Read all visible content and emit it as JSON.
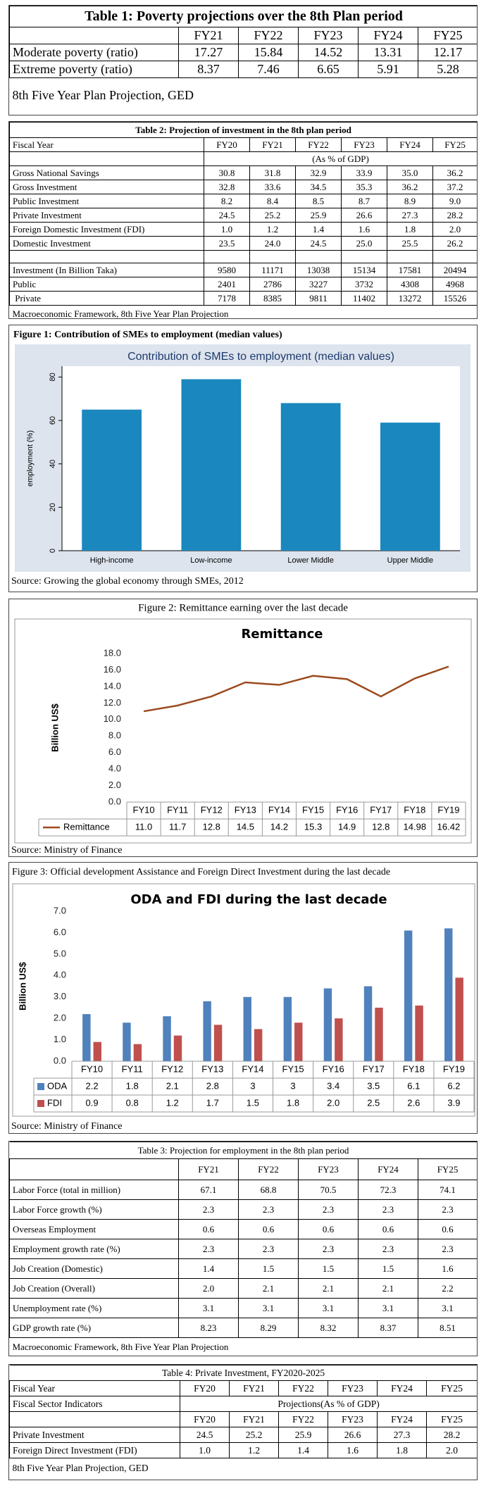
{
  "table1": {
    "title": "Table 1: Poverty projections over the 8th Plan period",
    "columns": [
      "FY21",
      "FY22",
      "FY23",
      "FY24",
      "FY25"
    ],
    "rows": [
      {
        "label": "Moderate poverty (ratio)",
        "values": [
          "17.27",
          "15.84",
          "14.52",
          "13.31",
          "12.17"
        ]
      },
      {
        "label": "Extreme poverty (ratio)",
        "values": [
          "8.37",
          "7.46",
          "6.65",
          "5.91",
          "5.28"
        ]
      }
    ],
    "source": "8th Five Year Plan Projection, GED"
  },
  "table2": {
    "title": "Table 2: Projection of investment in the 8th plan period",
    "header": "Fiscal Year",
    "columns": [
      "FY20",
      "FY21",
      "FY22",
      "FY23",
      "FY24",
      "FY25"
    ],
    "unit": "(As % of GDP)",
    "sections": [
      [
        {
          "label": "Gross National Savings",
          "values": [
            "30.8",
            "31.8",
            "32.9",
            "33.9",
            "35.0",
            "36.2"
          ]
        },
        {
          "label": "Gross Investment",
          "values": [
            "32.8",
            "33.6",
            "34.5",
            "35.3",
            "36.2",
            "37.2"
          ]
        },
        {
          "label": "Public Investment",
          "values": [
            "8.2",
            "8.4",
            "8.5",
            "8.7",
            "8.9",
            "9.0"
          ]
        },
        {
          "label": "Private Investment",
          "values": [
            "24.5",
            "25.2",
            "25.9",
            "26.6",
            "27.3",
            "28.2"
          ]
        },
        {
          "label": "Foreign Domestic Investment (FDI)",
          "values": [
            "1.0",
            "1.2",
            "1.4",
            "1.6",
            "1.8",
            "2.0"
          ]
        },
        {
          "label": "Domestic Investment",
          "values": [
            "23.5",
            "24.0",
            "24.5",
            "25.0",
            "25.5",
            "26.2"
          ]
        }
      ],
      [
        {
          "label": "Investment (In Billion Taka)",
          "values": [
            "9580",
            "11171",
            "13038",
            "15134",
            "17581",
            "20494"
          ]
        },
        {
          "label": "Public",
          "values": [
            "2401",
            "2786",
            "3227",
            "3732",
            "4308",
            "4968"
          ]
        },
        {
          "label": " Private",
          "values": [
            "7178",
            "8385",
            "9811",
            "11402",
            "13272",
            "15526"
          ]
        }
      ]
    ],
    "source": "Macroeconomic Framework, 8th Five Year Plan Projection"
  },
  "chart_data": [
    {
      "type": "bar",
      "caption": "Figure 1: Contribution of SMEs to employment (median values)",
      "title": "Contribution of SMEs to employment (median values)",
      "y_label": "employment (%)",
      "categories": [
        "High-income",
        "Low-income",
        "Lower Middle",
        "Upper Middle"
      ],
      "values": [
        65,
        79,
        68,
        59
      ],
      "color": "#1a87be",
      "ylim": [
        0,
        85
      ],
      "yticks": [
        0,
        20,
        40,
        60,
        80
      ],
      "source": "Source: Growing the global economy through SMEs, 2012"
    },
    {
      "type": "line",
      "caption": "Figure 2: Remittance earning over the last decade",
      "title": "Remittance",
      "y_label": "Billion US$",
      "categories": [
        "FY10",
        "FY11",
        "FY12",
        "FY13",
        "FY14",
        "FY15",
        "FY16",
        "FY17",
        "FY18",
        "FY19"
      ],
      "series": [
        {
          "name": "Remittance",
          "color": "#9c4a1f",
          "values": [
            11.0,
            11.7,
            12.8,
            14.5,
            14.2,
            15.3,
            14.9,
            12.8,
            14.98,
            16.42
          ],
          "value_labels": [
            "11.0",
            "11.7",
            "12.8",
            "14.5",
            "14.2",
            "15.3",
            "14.9",
            "12.8",
            "14.98",
            "16.42"
          ]
        }
      ],
      "ylim": [
        0,
        18
      ],
      "yticks": [
        {
          "value": 0,
          "label": "0.0"
        },
        {
          "value": 2,
          "label": "2.0"
        },
        {
          "value": 4,
          "label": "4.0"
        },
        {
          "value": 6,
          "label": "6.0"
        },
        {
          "value": 8,
          "label": "8.0"
        },
        {
          "value": 10,
          "label": "10.0"
        },
        {
          "value": 12,
          "label": "12.0"
        },
        {
          "value": 14,
          "label": "14.0"
        },
        {
          "value": 16,
          "label": "16.0"
        },
        {
          "value": 18,
          "label": "18.0"
        }
      ],
      "data_table": true,
      "source": "Source: Ministry of Finance"
    },
    {
      "type": "bar",
      "caption": "Figure 3: Official development Assistance and Foreign Direct Investment during the last decade",
      "title": "ODA and FDI during the last decade",
      "y_label": "Billion US$",
      "categories": [
        "FY10",
        "FY11",
        "FY12",
        "FY13",
        "FY14",
        "FY15",
        "FY16",
        "FY17",
        "FY18",
        "FY19"
      ],
      "series": [
        {
          "name": "ODA",
          "color": "#4f81bd",
          "values": [
            2.2,
            1.8,
            2.1,
            2.8,
            3,
            3,
            3.4,
            3.5,
            6.1,
            6.2
          ]
        },
        {
          "name": "FDI",
          "color": "#c0504d",
          "values": [
            0.9,
            0.8,
            1.2,
            1.7,
            1.5,
            1.8,
            2.0,
            2.5,
            2.6,
            3.9
          ],
          "value_labels": [
            "0.9",
            "0.8",
            "1.2",
            "1.7",
            "1.5",
            "1.8",
            "2.0",
            "2.5",
            "2.6",
            "3.9"
          ]
        }
      ],
      "ylim": [
        0,
        7
      ],
      "yticks": [
        {
          "value": 0,
          "label": "0.0"
        },
        {
          "value": 1,
          "label": "1.0"
        },
        {
          "value": 2,
          "label": "2.0"
        },
        {
          "value": 3,
          "label": "3.0"
        },
        {
          "value": 4,
          "label": "4.0"
        },
        {
          "value": 5,
          "label": "5.0"
        },
        {
          "value": 6,
          "label": "6.0"
        },
        {
          "value": 7,
          "label": "7.0"
        }
      ],
      "data_table": true,
      "source": "Source: Ministry of Finance"
    }
  ],
  "table3": {
    "title": "Table 3: Projection for employment in the 8th plan period",
    "columns": [
      "FY21",
      "FY22",
      "FY23",
      "FY24",
      "FY25"
    ],
    "rows": [
      {
        "label": "Labor Force (total in million)",
        "values": [
          "67.1",
          "68.8",
          "70.5",
          "72.3",
          "74.1"
        ]
      },
      {
        "label": "Labor Force growth (%)",
        "values": [
          "2.3",
          "2.3",
          "2.3",
          "2.3",
          "2.3"
        ]
      },
      {
        "label": "Overseas Employment",
        "values": [
          "0.6",
          "0.6",
          "0.6",
          "0.6",
          "0.6"
        ]
      },
      {
        "label": "Employment growth rate (%)",
        "values": [
          "2.3",
          "2.3",
          "2.3",
          "2.3",
          "2.3"
        ]
      },
      {
        "label": "Job Creation (Domestic)",
        "values": [
          "1.4",
          "1.5",
          "1.5",
          "1.5",
          "1.6"
        ]
      },
      {
        "label": "Job Creation (Overall)",
        "values": [
          "2.0",
          "2.1",
          "2.1",
          "2.1",
          "2.2"
        ]
      },
      {
        "label": "Unemployment rate (%)",
        "values": [
          "3.1",
          "3.1",
          "3.1",
          "3.1",
          "3.1"
        ]
      },
      {
        "label": "GDP growth rate (%)",
        "values": [
          "8.23",
          "8.29",
          "8.32",
          "8.37",
          "8.51"
        ]
      }
    ],
    "source": "Macroeconomic Framework, 8th Five Year Plan Projection"
  },
  "table4": {
    "title": "Table 4: Private Investment, FY2020-2025",
    "header": "Fiscal Year",
    "columns": [
      "FY20",
      "FY21",
      "FY22",
      "FY23",
      "FY24",
      "FY25"
    ],
    "subheader": "Fiscal Sector Indicators",
    "unit": "Projections(As % of GDP)",
    "years": [
      "FY20",
      "FY21",
      "FY22",
      "FY23",
      "FY24",
      "FY25"
    ],
    "rows": [
      {
        "label": "Private Investment",
        "values": [
          "24.5",
          "25.2",
          "25.9",
          "26.6",
          "27.3",
          "28.2"
        ]
      },
      {
        "label": "Foreign Direct Investment (FDI)",
        "values": [
          "1.0",
          "1.2",
          "1.4",
          "1.6",
          "1.8",
          "2.0"
        ]
      }
    ],
    "source": "8th Five Year Plan Projection, GED"
  }
}
